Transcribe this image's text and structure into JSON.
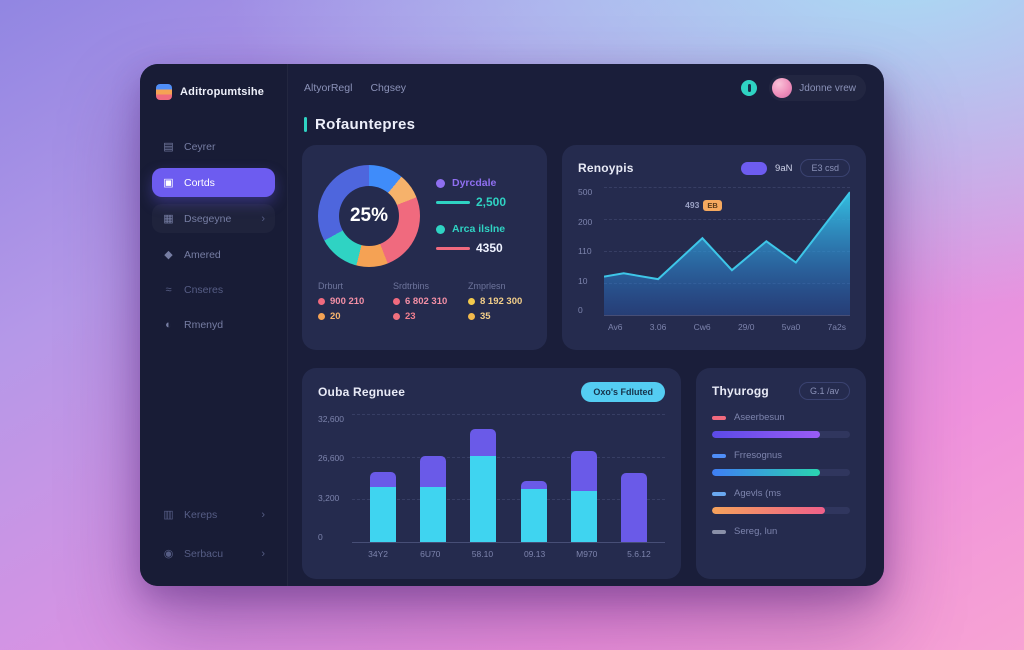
{
  "sidebar": {
    "logo_text": "Aditropumtsihe",
    "items": [
      {
        "label": "Ceyrer"
      },
      {
        "label": "Cortds",
        "active": true
      },
      {
        "label": "Dsegeyne",
        "chevron": "›"
      },
      {
        "label": "Amered"
      },
      {
        "label": "Cnseres"
      },
      {
        "label": "Rmenyd"
      }
    ],
    "footer_items": [
      {
        "label": "Kereps",
        "chevron": "›"
      },
      {
        "label": "Serbacu",
        "chevron": "›"
      }
    ]
  },
  "header": {
    "tabs": [
      {
        "label": "AltyorRegl"
      },
      {
        "label": "Chgsey"
      }
    ],
    "user_name": "Jdonne vrew"
  },
  "page_title": "Rofauntepres",
  "donut_card": {
    "center_value": "25%",
    "legend": [
      {
        "label": "Dyrcdale",
        "dot_color": "#8f6ff0",
        "label_color": "#8f6ff0",
        "line_color": "#2fd3c3",
        "value": "2,500",
        "value_color": "#2fd3c3"
      },
      {
        "label": "Arca ilslne",
        "dot_color": "#2fd3c3",
        "label_color": "#2fd3c3",
        "line_color": "#f06a7e",
        "value": "4350",
        "value_color": "#eef2ff"
      }
    ],
    "stats": [
      {
        "title": "Drburt",
        "rows": [
          {
            "dot": "#f06a7e",
            "color": "#f490a6",
            "text": "900 210"
          },
          {
            "dot": "#f5a254",
            "color": "#f5b46e",
            "text": "20"
          }
        ]
      },
      {
        "title": "Srdtrbins",
        "rows": [
          {
            "dot": "#f06a7e",
            "color": "#f490a6",
            "text": "6 802 310"
          },
          {
            "dot": "#f0707e",
            "color": "#f2808f",
            "text": "23"
          }
        ]
      },
      {
        "title": "Zmprlesn",
        "rows": [
          {
            "dot": "#f2c94c",
            "color": "#f3cf8a",
            "text": "8 192 300"
          },
          {
            "dot": "#f2b94c",
            "color": "#f3cf8a",
            "text": "35"
          }
        ]
      }
    ]
  },
  "area_card": {
    "title": "Renoypis",
    "badge_label": "9aN",
    "button_label": "E3 csd",
    "annotation": {
      "text": "493",
      "chip": "EB"
    }
  },
  "bar_card": {
    "title": "Ouba Regnuee",
    "button_label": "Oxo's Fdluted"
  },
  "progress_card": {
    "title": "Thyurogg",
    "badge_label": "G.1 /av",
    "items": [
      {
        "label": "Aseerbesun",
        "dash_color": "#f06a7e",
        "pct": 78,
        "gradient": [
          "#5b4ae8",
          "#9a5cf5"
        ]
      },
      {
        "label": "Frresognus",
        "dash_color": "#4f8ef7",
        "pct": 78,
        "gradient": [
          "#3f7ef5",
          "#2ad4b0"
        ]
      },
      {
        "label": "Agevls (ms",
        "dash_color": "#6aa8f0",
        "pct": 82,
        "gradient": [
          "#f5a25b",
          "#f0608a"
        ]
      },
      {
        "label": "Sereg, lun",
        "dash_color": "#8a90a8",
        "pct": null,
        "gradient": null
      }
    ]
  },
  "chart_data": [
    {
      "name": "status-donut",
      "type": "pie",
      "center_label": "25%",
      "segments": [
        {
          "label": "blue",
          "value": 11,
          "color": "#3f8cfa"
        },
        {
          "label": "amber",
          "value": 8,
          "color": "#f6b26b"
        },
        {
          "label": "coral",
          "value": 25,
          "color": "#f06a7e"
        },
        {
          "label": "orange",
          "value": 10,
          "color": "#f5a254"
        },
        {
          "label": "teal",
          "value": 13,
          "color": "#2fd3c3"
        },
        {
          "label": "indigo",
          "value": 33,
          "color": "#4e66dd"
        }
      ]
    },
    {
      "name": "traffic-area",
      "type": "area",
      "x_labels": [
        "Av6",
        "3.06",
        "Cw6",
        "29/0",
        "5va0",
        "7a2s"
      ],
      "y_ticks": [
        "500",
        "200",
        "110",
        "10",
        "0"
      ],
      "ylim": [
        0,
        500
      ],
      "points": [
        [
          0,
          150
        ],
        [
          8,
          163
        ],
        [
          22,
          140
        ],
        [
          40,
          300
        ],
        [
          52,
          175
        ],
        [
          66,
          288
        ],
        [
          78,
          205
        ],
        [
          100,
          480
        ]
      ],
      "line_color": "#3ec6e8",
      "fill_from": "#35c8e8",
      "fill_to": "#2a6bd4"
    },
    {
      "name": "volume-bars",
      "type": "bar",
      "stacked": true,
      "x_labels": [
        "34Y2",
        "6U70",
        "58.10",
        "09.13",
        "M970",
        "5.6.12"
      ],
      "y_ticks": [
        "32,600",
        "26,600",
        "3,200",
        "0"
      ],
      "ylim": [
        0,
        32600
      ],
      "series": [
        {
          "name": "bottom-cyan",
          "color": "#3fd4f0",
          "values": [
            14000,
            14000,
            21800,
            13400,
            13000,
            0
          ]
        },
        {
          "name": "top-purple",
          "color": "#6a5ae8",
          "values": [
            3900,
            7800,
            6900,
            2200,
            10100,
            17600
          ]
        }
      ]
    }
  ]
}
